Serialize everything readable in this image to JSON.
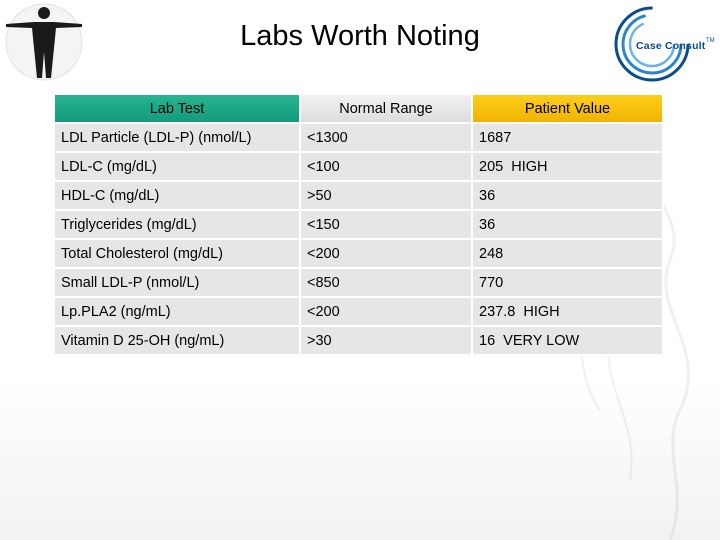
{
  "slide": {
    "title": "Labs Worth Noting"
  },
  "logo": {
    "text": "Case Consult",
    "tm": "TM",
    "accent": "#0b4d8c"
  },
  "table": {
    "headers": [
      "Lab Test",
      "Normal Range",
      "Patient Value"
    ],
    "header_colors": [
      "#1faa8a",
      "#e8e8e8",
      "#f8c000"
    ],
    "rows": [
      [
        "LDL Particle (LDL-P) (nmol/L)",
        "<1300",
        "1687"
      ],
      [
        "LDL-C (mg/dL)",
        "<100",
        "205  HIGH"
      ],
      [
        "HDL-C (mg/dL)",
        ">50",
        "36"
      ],
      [
        "Triglycerides (mg/dL)",
        "<150",
        "36"
      ],
      [
        "Total Cholesterol (mg/dL)",
        "<200",
        "248"
      ],
      [
        "Small LDL-P (nmol/L)",
        "<850",
        "770"
      ],
      [
        "Lp.PLA2 (ng/mL)",
        "<200",
        "237.8  HIGH"
      ],
      [
        "Vitamin D 25-OH (ng/mL)",
        ">30",
        "16  VERY LOW"
      ]
    ]
  }
}
